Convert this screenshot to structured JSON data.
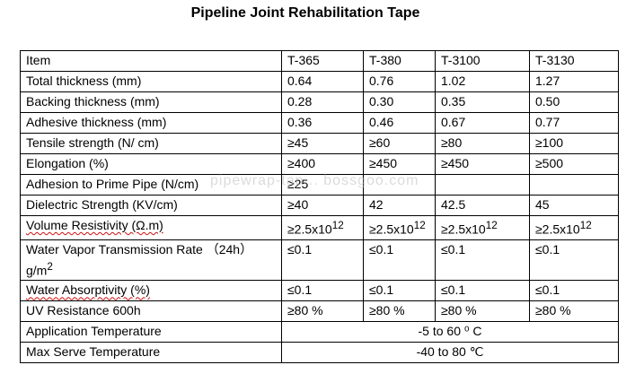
{
  "title": "Pipeline Joint Rehabilitation Tape",
  "watermark": "pipewrap-tap... bossgoo.com",
  "table": {
    "columns": [
      "Item",
      "T-365",
      "T-380",
      "T-3100",
      "T-3130"
    ],
    "rows": [
      {
        "item": "Total thickness (mm)",
        "values": [
          "0.64",
          "0.76",
          "1.02",
          "1.27"
        ]
      },
      {
        "item": "Backing thickness (mm)",
        "values": [
          "0.28",
          "0.30",
          "0.35",
          "0.50"
        ]
      },
      {
        "item": "Adhesive thickness (mm)",
        "values": [
          "0.36",
          "0.46",
          "0.67",
          "0.77"
        ]
      },
      {
        "item": "Tensile strength (N/ cm)",
        "values": [
          "≥45",
          "≥60",
          "≥80",
          "≥100"
        ]
      },
      {
        "item": "Elongation (%)",
        "values": [
          "≥400",
          "≥450",
          "≥450",
          "≥500"
        ]
      },
      {
        "item": "Adhesion to Prime Pipe (N/cm)",
        "values": [
          "≥25",
          "",
          "",
          ""
        ]
      },
      {
        "item": "Dielectric Strength (KV/cm)",
        "values": [
          "≥40",
          "42",
          "42.5",
          "45"
        ]
      },
      {
        "item": "Volume Resistivity (Ω.m)",
        "values": [
          "≥2.5x10",
          "≥2.5x10",
          "≥2.5x10",
          "≥2.5x10"
        ],
        "exponent": "12"
      },
      {
        "item": "Water Vapor Transmission Rate  （24h）g/m",
        "item_sup": "2",
        "values": [
          "≤0.1",
          "≤0.1",
          "≤0.1",
          "≤0.1"
        ]
      },
      {
        "item": "Water Absorptivity (%)",
        "values": [
          "≤0.1",
          "≤0.1",
          "≤0.1",
          "≤0.1"
        ]
      },
      {
        "item": "UV Resistance 600h",
        "values": [
          "≥80 %",
          "≥80 %",
          "≥80 %",
          "≥80 %"
        ]
      }
    ],
    "merged_rows": [
      {
        "item": "Application Temperature",
        "value": "-5 to 60 ⁰ C"
      },
      {
        "item": "Max Serve Temperature",
        "value": "-40 to 80 ℃"
      }
    ]
  }
}
